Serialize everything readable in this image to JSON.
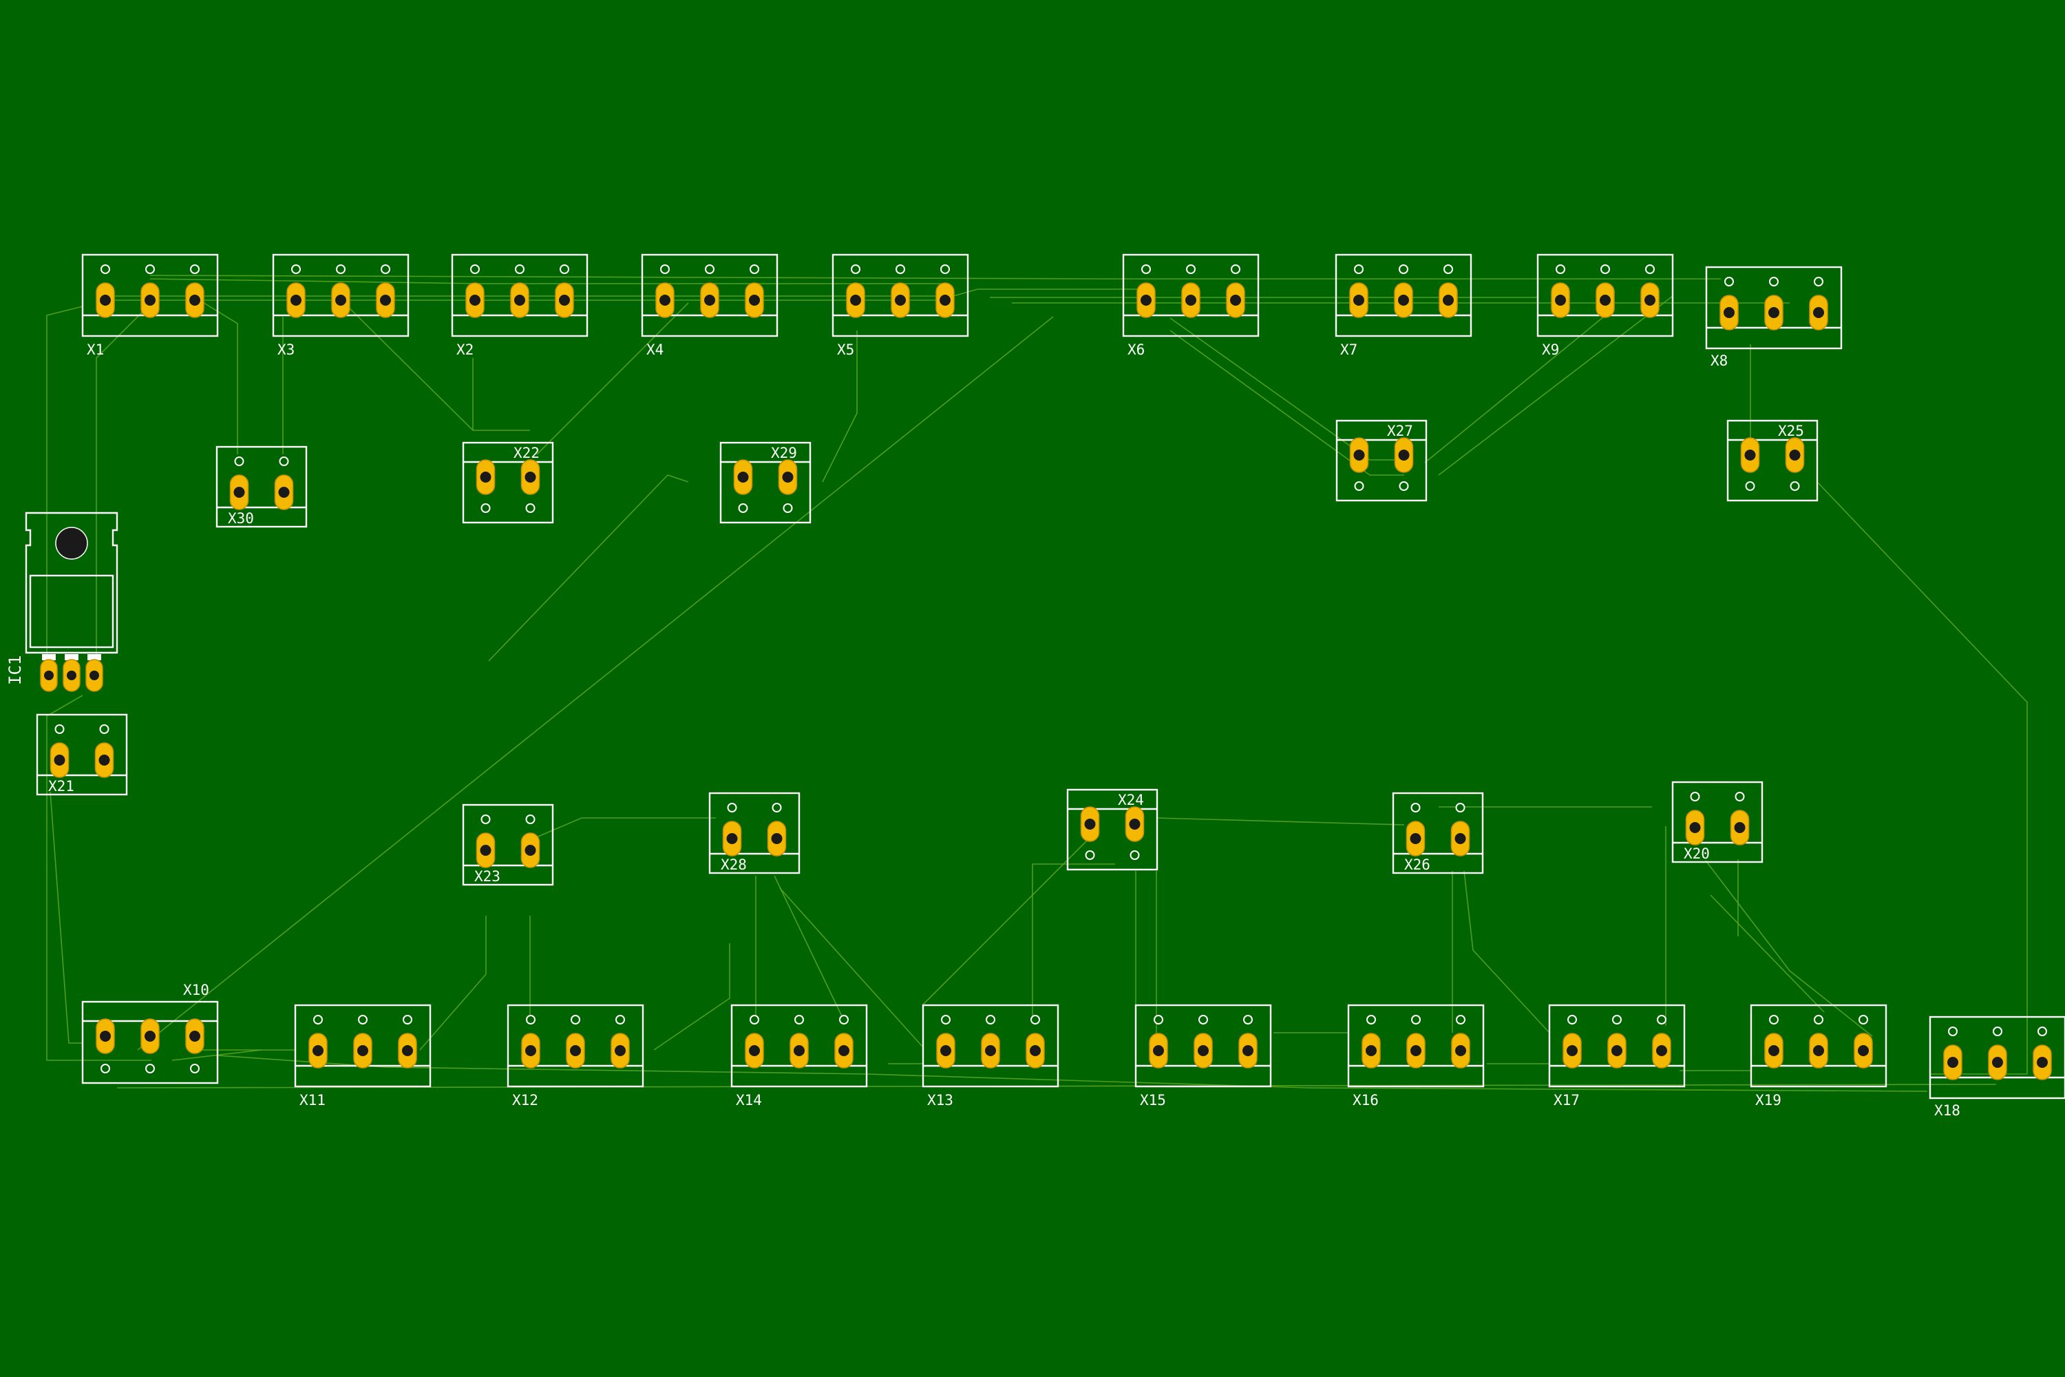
{
  "board": {
    "background_color": "#006400",
    "silkscreen_color": "#ffffff",
    "pad_color": "#f5b800",
    "trace_color": "#5ea623"
  },
  "ic": {
    "ref": "IC1",
    "pins": 3
  },
  "connectors": [
    {
      "ref": "X1",
      "pins": 3
    },
    {
      "ref": "X3",
      "pins": 3
    },
    {
      "ref": "X2",
      "pins": 3
    },
    {
      "ref": "X4",
      "pins": 3
    },
    {
      "ref": "X5",
      "pins": 3
    },
    {
      "ref": "X6",
      "pins": 3
    },
    {
      "ref": "X7",
      "pins": 3
    },
    {
      "ref": "X9",
      "pins": 3
    },
    {
      "ref": "X8",
      "pins": 3
    },
    {
      "ref": "X30",
      "pins": 2
    },
    {
      "ref": "X22",
      "pins": 2
    },
    {
      "ref": "X29",
      "pins": 2
    },
    {
      "ref": "X27",
      "pins": 2
    },
    {
      "ref": "X25",
      "pins": 2
    },
    {
      "ref": "X21",
      "pins": 2
    },
    {
      "ref": "X23",
      "pins": 2
    },
    {
      "ref": "X28",
      "pins": 2
    },
    {
      "ref": "X24",
      "pins": 2
    },
    {
      "ref": "X26",
      "pins": 2
    },
    {
      "ref": "X20",
      "pins": 2
    },
    {
      "ref": "X10",
      "pins": 3
    },
    {
      "ref": "X11",
      "pins": 3
    },
    {
      "ref": "X12",
      "pins": 3
    },
    {
      "ref": "X14",
      "pins": 3
    },
    {
      "ref": "X13",
      "pins": 3
    },
    {
      "ref": "X15",
      "pins": 3
    },
    {
      "ref": "X16",
      "pins": 3
    },
    {
      "ref": "X17",
      "pins": 3
    },
    {
      "ref": "X19",
      "pins": 3
    },
    {
      "ref": "X18",
      "pins": 3
    }
  ]
}
